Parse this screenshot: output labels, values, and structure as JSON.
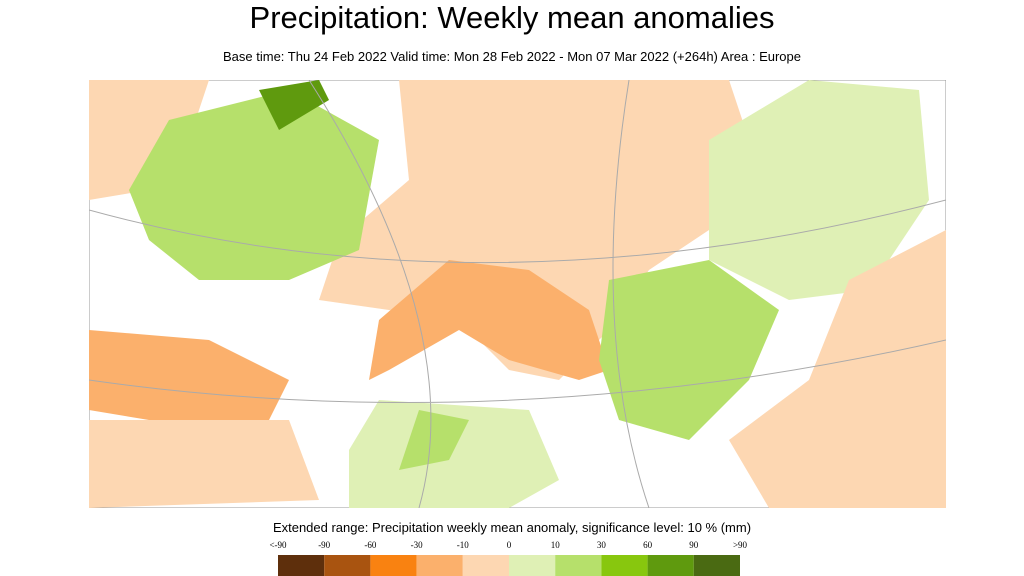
{
  "header": {
    "title": "Precipitation: Weekly mean anomalies",
    "subtitle": "Base time: Thu 24 Feb 2022 Valid time: Mon 28 Feb 2022 - Mon 07 Mar 2022 (+264h) Area : Europe"
  },
  "legend": {
    "title": "Extended range: Precipitation weekly mean anomaly, significance level: 10 % (mm)",
    "labels": [
      "<-90",
      "-90",
      "-60",
      "-30",
      "-10",
      "0",
      "10",
      "30",
      "60",
      "90",
      ">90"
    ],
    "colors": [
      "#5e2f0c",
      "#a95410",
      "#f98211",
      "#fbb06c",
      "#fdd7b2",
      "#dff0b5",
      "#b6e06b",
      "#88c70e",
      "#5f9a0e",
      "#4a6a12"
    ]
  }
}
